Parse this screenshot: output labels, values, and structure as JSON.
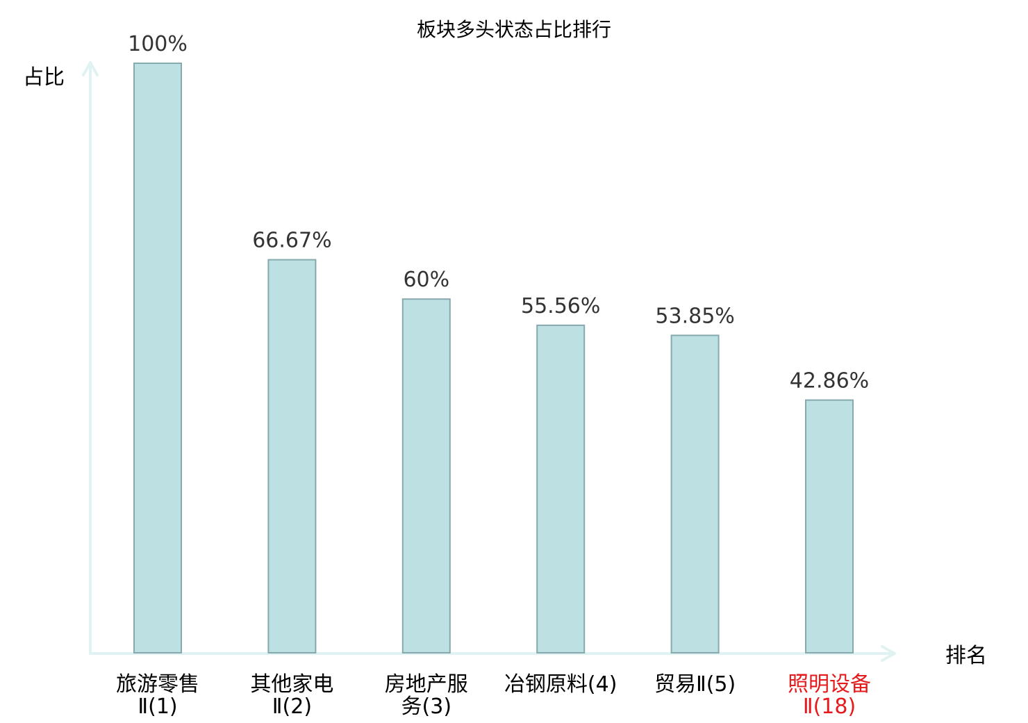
{
  "chart_data": {
    "type": "bar",
    "title": "板块多头状态占比排行",
    "ylabel": "占比",
    "xlabel": "排名",
    "ylim": [
      0,
      100
    ],
    "grid": false,
    "categories": [
      {
        "lines": [
          "旅游零售",
          "Ⅱ(1)"
        ],
        "highlight": false
      },
      {
        "lines": [
          "其他家电",
          "Ⅱ(2)"
        ],
        "highlight": false
      },
      {
        "lines": [
          "房地产服",
          "务(3)"
        ],
        "highlight": false
      },
      {
        "lines": [
          "冶钢原料(4)"
        ],
        "highlight": false
      },
      {
        "lines": [
          "贸易Ⅱ(5)"
        ],
        "highlight": false
      },
      {
        "lines": [
          "照明设备",
          "Ⅱ(18)"
        ],
        "highlight": true
      }
    ],
    "values": [
      100,
      66.67,
      60,
      55.56,
      53.85,
      42.86
    ],
    "value_labels": [
      "100%",
      "66.67%",
      "60%",
      "55.56%",
      "53.85%",
      "42.86%"
    ],
    "colors": {
      "bar_fill": "#bde0e3",
      "bar_stroke": "#86a9ad",
      "axis": "#e0f2f1",
      "label": "#333333",
      "category": "#000000",
      "highlight": "#e41a1c"
    }
  }
}
